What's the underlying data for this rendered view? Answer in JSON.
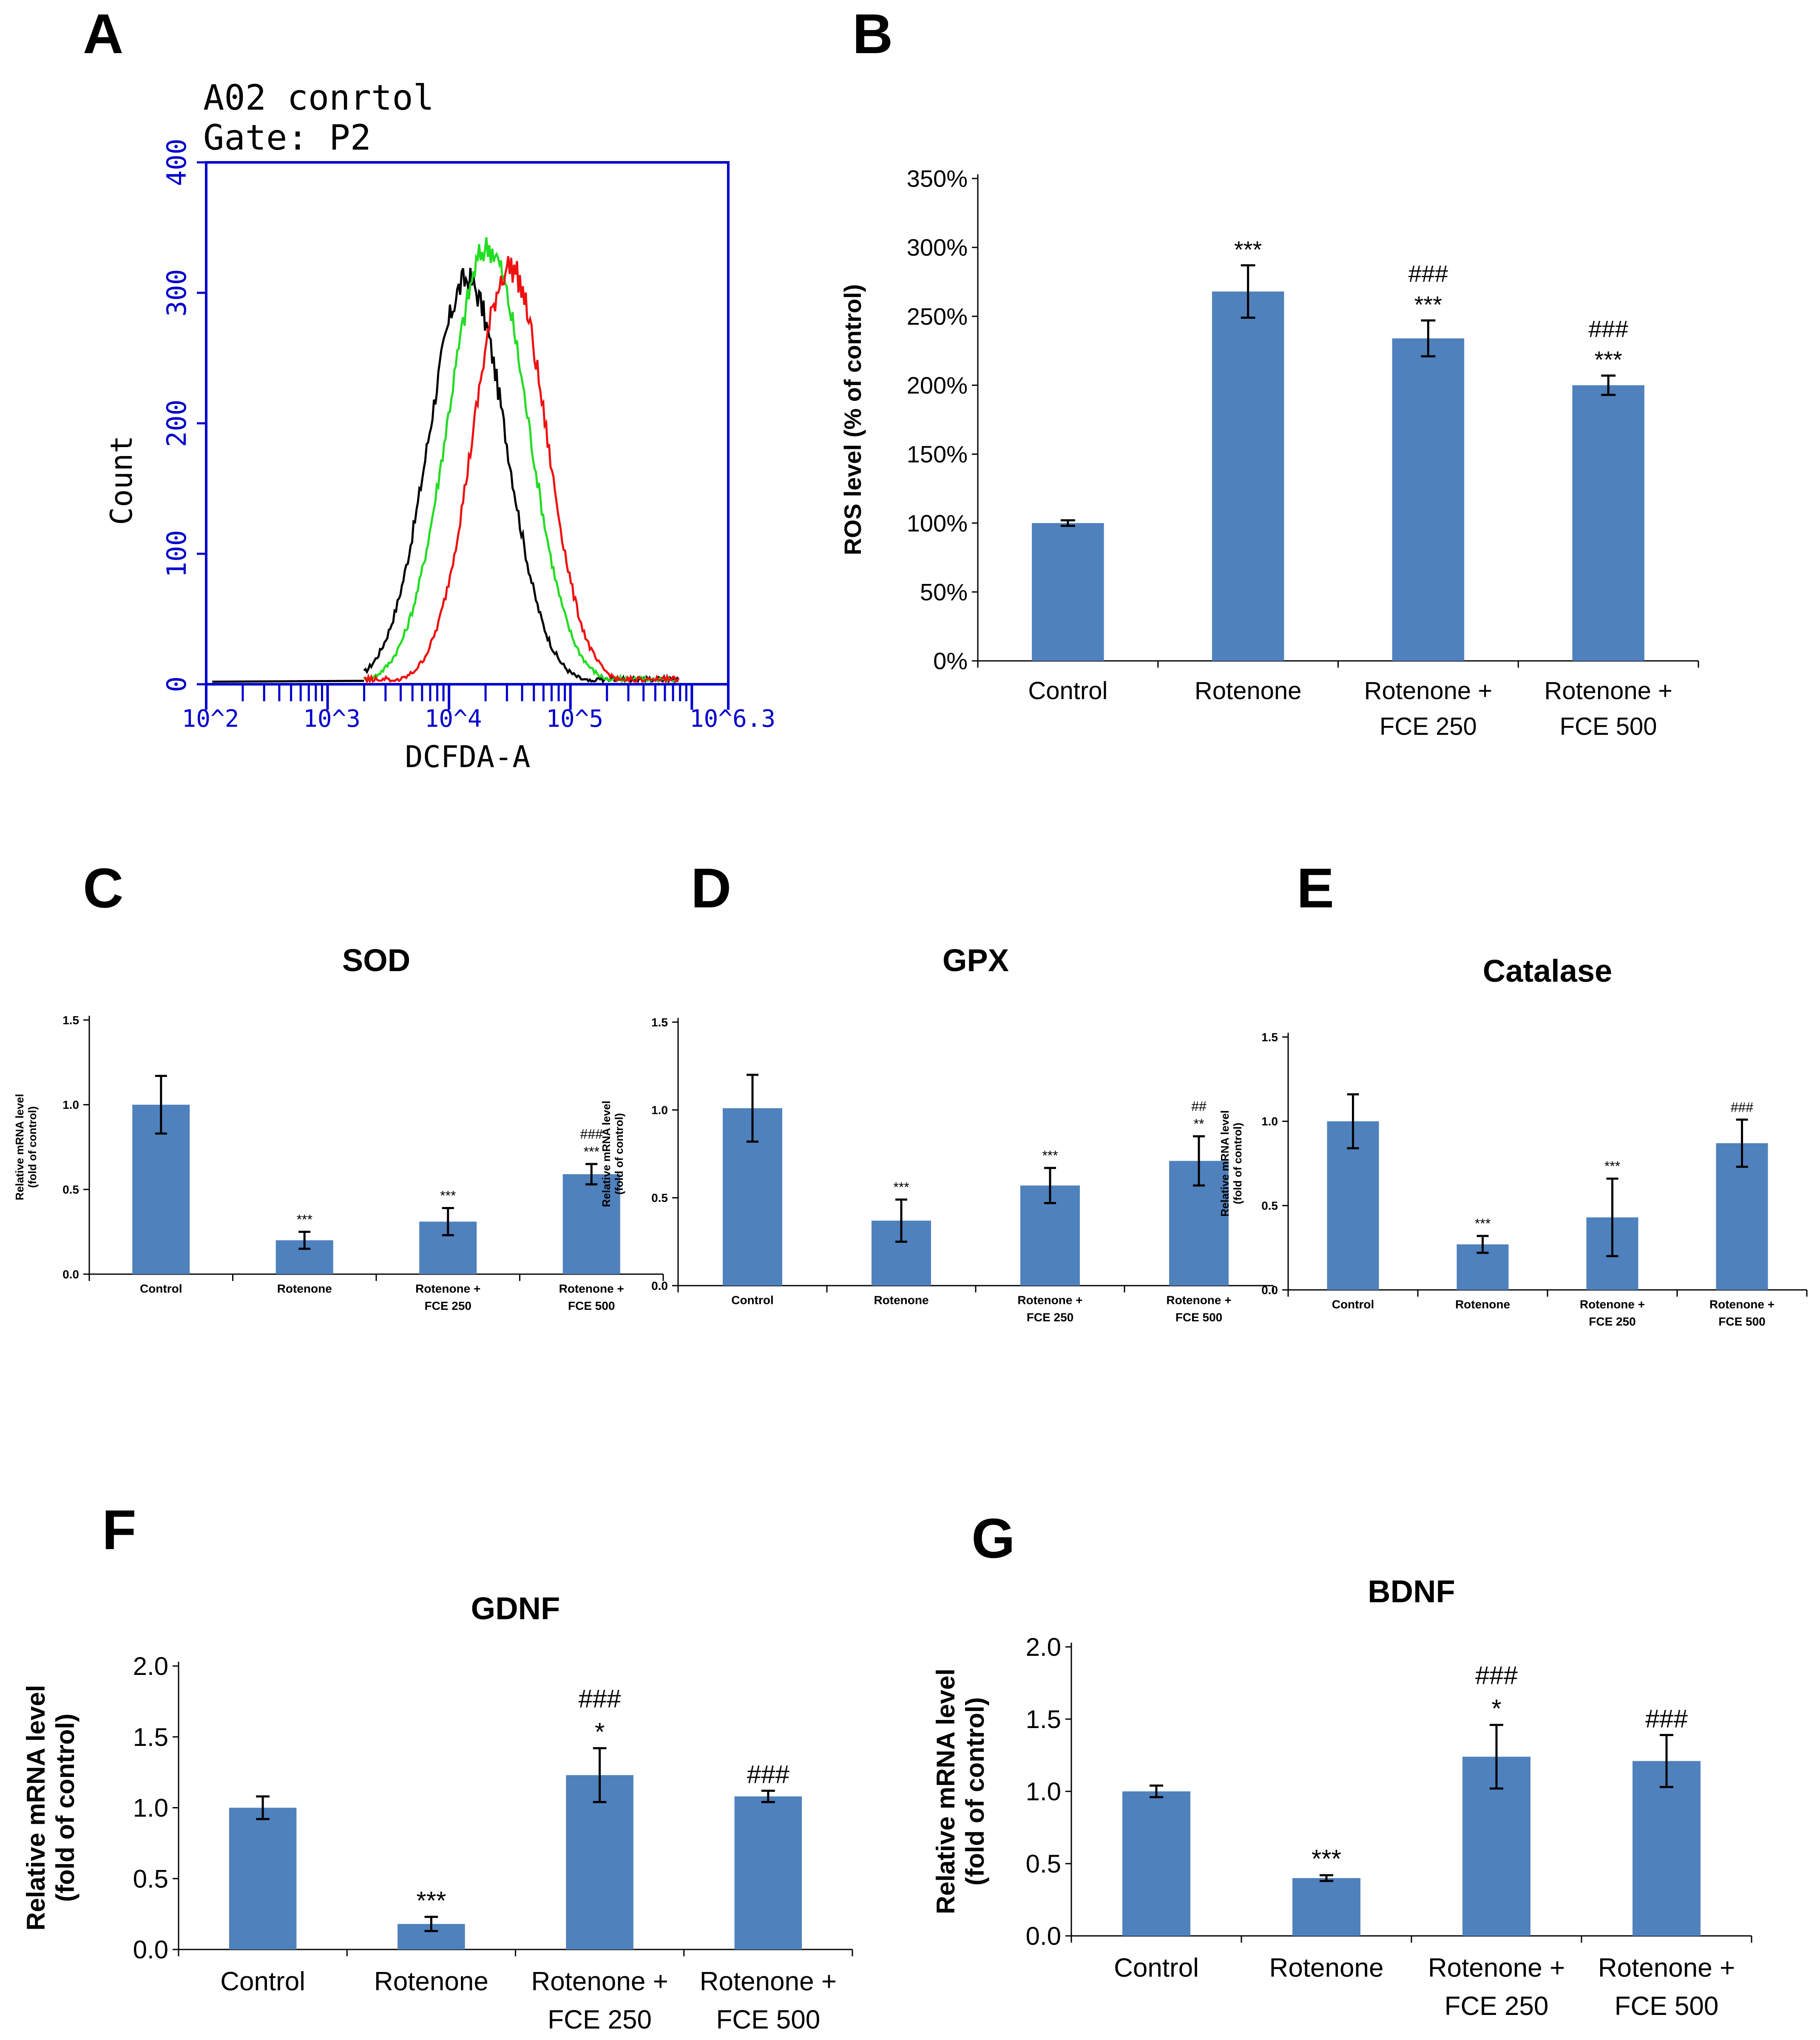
{
  "panel_labels": [
    "A",
    "B",
    "C",
    "D",
    "E",
    "F",
    "G"
  ],
  "chart_data": [
    {
      "id": "A",
      "type": "line",
      "title_lines": [
        "A02 conrtol",
        "Gate: P2"
      ],
      "xlabel": "DCFDA-A",
      "ylabel": "Count",
      "ylim": [
        0,
        400
      ],
      "yticks": [
        "0",
        "100",
        "200",
        "300",
        "400"
      ],
      "xticks": [
        "10^2",
        "10^3",
        "10^4",
        "10^5",
        "10^6.3"
      ],
      "xlim_log": [
        2,
        6.3
      ],
      "series": [
        {
          "name": "control",
          "color": "#000000",
          "peak_log": 4.15,
          "peak_count": 310,
          "width": 0.32
        },
        {
          "name": "green",
          "color": "#22dd22",
          "peak_log": 4.32,
          "peak_count": 335,
          "width": 0.33
        },
        {
          "name": "red",
          "color": "#ee1111",
          "peak_log": 4.5,
          "peak_count": 320,
          "width": 0.3
        }
      ]
    },
    {
      "id": "B",
      "type": "bar",
      "title": "",
      "ylabel": "ROS level (% of control)",
      "ylim": [
        0,
        350
      ],
      "yticks": [
        "0%",
        "50%",
        "100%",
        "150%",
        "200%",
        "250%",
        "300%",
        "350%"
      ],
      "categories": [
        [
          "Control"
        ],
        [
          "Rotenone"
        ],
        [
          "Rotenone +",
          "FCE 250"
        ],
        [
          "Rotenone +",
          "FCE 500"
        ]
      ],
      "values": [
        100,
        268,
        234,
        200
      ],
      "errors": [
        2,
        19,
        13,
        7
      ],
      "annotations": [
        [],
        [
          "***"
        ],
        [
          "###",
          "***"
        ],
        [
          "###",
          "***"
        ]
      ]
    },
    {
      "id": "C",
      "type": "bar",
      "title": "SOD",
      "ylabel_lines": [
        "Relative mRNA level",
        "(fold of control)"
      ],
      "ylim": [
        0,
        1.5
      ],
      "yticks": [
        "0.0",
        "0.5",
        "1.0",
        "1.5"
      ],
      "categories": [
        [
          "Control"
        ],
        [
          "Rotenone"
        ],
        [
          "Rotenone +",
          "FCE 250"
        ],
        [
          "Rotenone +",
          "FCE 500"
        ]
      ],
      "values": [
        1.0,
        0.2,
        0.31,
        0.59
      ],
      "errors": [
        0.17,
        0.05,
        0.08,
        0.06
      ],
      "annotations": [
        [],
        [
          "***"
        ],
        [
          "***"
        ],
        [
          "###",
          "***"
        ]
      ]
    },
    {
      "id": "D",
      "type": "bar",
      "title": "GPX",
      "ylabel_lines": [
        "Relative mRNA level",
        "(fold of control)"
      ],
      "ylim": [
        0,
        1.5
      ],
      "yticks": [
        "0.0",
        "0.5",
        "1.0",
        "1.5"
      ],
      "categories": [
        [
          "Control"
        ],
        [
          "Rotenone"
        ],
        [
          "Rotenone +",
          "FCE 250"
        ],
        [
          "Rotenone +",
          "FCE 500"
        ]
      ],
      "values": [
        1.01,
        0.37,
        0.57,
        0.71
      ],
      "errors": [
        0.19,
        0.12,
        0.1,
        0.14
      ],
      "annotations": [
        [],
        [
          "***"
        ],
        [
          "***"
        ],
        [
          "##",
          "**"
        ]
      ]
    },
    {
      "id": "E",
      "type": "bar",
      "title": "Catalase",
      "ylabel_lines": [
        "Relative mRNA level",
        "(fold of control)"
      ],
      "ylim": [
        0,
        1.5
      ],
      "yticks": [
        "0.0",
        "0.5",
        "1.0",
        "1.5"
      ],
      "categories": [
        [
          "Control"
        ],
        [
          "Rotenone"
        ],
        [
          "Rotenone +",
          "FCE 250"
        ],
        [
          "Rotenone +",
          "FCE 500"
        ]
      ],
      "values": [
        1.0,
        0.27,
        0.43,
        0.87
      ],
      "errors": [
        0.16,
        0.05,
        0.23,
        0.14
      ],
      "annotations": [
        [],
        [
          "***"
        ],
        [
          "***"
        ],
        [
          "###"
        ]
      ]
    },
    {
      "id": "F",
      "type": "bar",
      "title": "GDNF",
      "ylabel_lines": [
        "Relative mRNA level",
        "(fold of control)"
      ],
      "ylim": [
        0,
        2.0
      ],
      "yticks": [
        "0.0",
        "0.5",
        "1.0",
        "1.5",
        "2.0"
      ],
      "categories": [
        [
          "Control"
        ],
        [
          "Rotenone"
        ],
        [
          "Rotenone +",
          "FCE 250"
        ],
        [
          "Rotenone +",
          "FCE 500"
        ]
      ],
      "values": [
        1.0,
        0.18,
        1.23,
        1.08
      ],
      "errors": [
        0.08,
        0.05,
        0.19,
        0.04
      ],
      "annotations": [
        [],
        [
          "***"
        ],
        [
          "###",
          "*"
        ],
        [
          "###"
        ]
      ]
    },
    {
      "id": "G",
      "type": "bar",
      "title": "BDNF",
      "ylabel_lines": [
        "Relative mRNA level",
        "(fold of control)"
      ],
      "ylim": [
        0,
        2.0
      ],
      "yticks": [
        "0.0",
        "0.5",
        "1.0",
        "1.5",
        "2.0"
      ],
      "categories": [
        [
          "Control"
        ],
        [
          "Rotenone"
        ],
        [
          "Rotenone +",
          "FCE 250"
        ],
        [
          "Rotenone +",
          "FCE 500"
        ]
      ],
      "values": [
        1.0,
        0.4,
        1.24,
        1.21
      ],
      "errors": [
        0.04,
        0.02,
        0.22,
        0.18
      ],
      "annotations": [
        [],
        [
          "***"
        ],
        [
          "###",
          "*"
        ],
        [
          "###"
        ]
      ]
    }
  ]
}
